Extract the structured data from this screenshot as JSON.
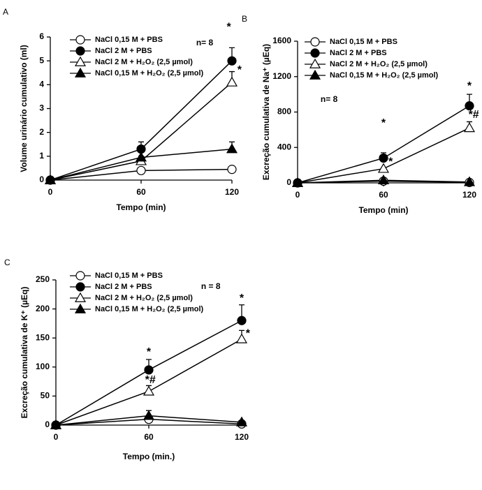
{
  "chart_data": [
    {
      "type": "line",
      "panel_label": "A",
      "x_label": "Tempo (min)",
      "y_label": "Volume urinário cumulativo (ml)",
      "x": [
        0,
        60,
        120
      ],
      "xlim": [
        0,
        120
      ],
      "xticks": [
        0,
        60,
        120
      ],
      "ylim": [
        0,
        6
      ],
      "yticks": [
        0,
        1,
        2,
        3,
        4,
        5,
        6
      ],
      "legend": "upper left",
      "series": [
        {
          "name": "NaCl 0,15 M + PBS",
          "color": "#000000",
          "marker": "circle-open",
          "values": [
            0,
            0.4,
            0.45
          ],
          "errors": [
            null,
            null,
            null
          ]
        },
        {
          "name": "NaCl 2 M + PBS",
          "color": "#000000",
          "marker": "circle-filled",
          "values": [
            0,
            1.3,
            5.0
          ],
          "errors": [
            null,
            0.3,
            0.55
          ]
        },
        {
          "name": "NaCl 2 M + H₂O₂ (2,5 µmol)",
          "color": "#000000",
          "marker": "triangle-open",
          "values": [
            0,
            0.8,
            4.1
          ],
          "errors": [
            null,
            0.2,
            0.45
          ]
        },
        {
          "name": "NaCl 0,15 M + H₂O₂ (2,5 µmol)",
          "color": "#000000",
          "marker": "triangle-filled",
          "values": [
            0,
            0.95,
            1.3
          ],
          "errors": [
            null,
            null,
            0.3
          ]
        }
      ],
      "annotations": [
        {
          "text": "n= 8",
          "x": 102,
          "y": 5.74
        },
        {
          "text": "*",
          "x": 118,
          "y": 6.4
        },
        {
          "text": "*",
          "x": 125,
          "y": 4.6
        }
      ]
    },
    {
      "type": "line",
      "panel_label": "B",
      "x_label": "Tempo (min)",
      "y_label": "Excreção cumulativa de Na⁺ (µEq)",
      "x": [
        0,
        60,
        120
      ],
      "xlim": [
        0,
        120
      ],
      "xticks": [
        0,
        60,
        120
      ],
      "ylim": [
        0,
        1600
      ],
      "yticks": [
        0,
        400,
        800,
        1200,
        1600
      ],
      "legend": "upper left",
      "series": [
        {
          "name": "NaCl 0,15 M + PBS",
          "color": "#000000",
          "marker": "circle-open",
          "values": [
            0,
            20,
            5
          ],
          "errors": [
            null,
            null,
            null
          ]
        },
        {
          "name": "NaCl 2 M + PBS",
          "color": "#000000",
          "marker": "circle-filled",
          "values": [
            0,
            280,
            870
          ],
          "errors": [
            null,
            60,
            130
          ]
        },
        {
          "name": "NaCl 2 M + H₂O₂ (2,5 µmol)",
          "color": "#000000",
          "marker": "triangle-open",
          "values": [
            0,
            160,
            620
          ],
          "errors": [
            null,
            null,
            70
          ]
        },
        {
          "name": "NaCl 0,15 M + H₂O₂ (2,5 µmol)",
          "color": "#000000",
          "marker": "triangle-filled",
          "values": [
            0,
            30,
            10
          ],
          "errors": [
            null,
            null,
            null
          ]
        }
      ],
      "annotations": [
        {
          "text": "n= 8",
          "x": 22,
          "y": 938
        },
        {
          "text": "*",
          "x": 60,
          "y": 670
        },
        {
          "text": "*",
          "x": 65,
          "y": 236
        },
        {
          "text": "*",
          "x": 120,
          "y": 1088
        },
        {
          "text": "*#",
          "x": 123,
          "y": 765
        }
      ]
    },
    {
      "type": "line",
      "panel_label": "C",
      "x_label": "Tempo (min.)",
      "y_label": "Excreção cumulativa de K⁺ (µEq)",
      "x": [
        0,
        60,
        120
      ],
      "xlim": [
        0,
        120
      ],
      "xticks": [
        0,
        60,
        120
      ],
      "ylim": [
        0,
        250
      ],
      "yticks": [
        0,
        50,
        100,
        150,
        200,
        250
      ],
      "legend": "upper left",
      "series": [
        {
          "name": "NaCl 0,15 M + PBS",
          "color": "#000000",
          "marker": "circle-open",
          "values": [
            0,
            10,
            2
          ],
          "errors": [
            null,
            null,
            null
          ]
        },
        {
          "name": "NaCl 2 M + PBS",
          "color": "#000000",
          "marker": "circle-filled",
          "values": [
            0,
            95,
            180
          ],
          "errors": [
            null,
            18,
            27
          ]
        },
        {
          "name": "NaCl 2 M + H₂O₂ (2,5 µmol)",
          "color": "#000000",
          "marker": "triangle-open",
          "values": [
            0,
            58,
            148
          ],
          "errors": [
            null,
            10,
            15
          ]
        },
        {
          "name": "NaCl 0,15 M + H₂O₂ (2,5 µmol)",
          "color": "#000000",
          "marker": "triangle-filled",
          "values": [
            0,
            16,
            5
          ],
          "errors": [
            null,
            9,
            3
          ]
        }
      ],
      "annotations": [
        {
          "text": "n = 8",
          "x": 100,
          "y": 238
        },
        {
          "text": "*",
          "x": 60,
          "y": 125
        },
        {
          "text": "*#",
          "x": 61,
          "y": 77
        },
        {
          "text": "*",
          "x": 120,
          "y": 218
        },
        {
          "text": "*",
          "x": 124,
          "y": 157
        }
      ]
    }
  ]
}
